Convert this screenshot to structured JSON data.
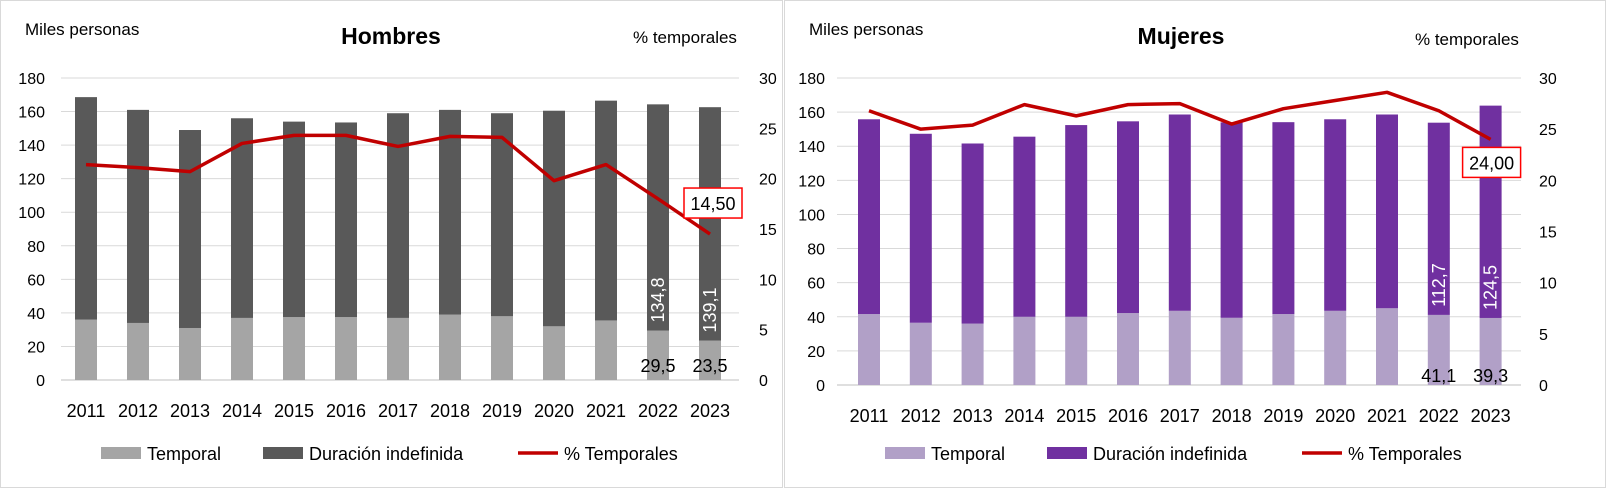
{
  "colors": {
    "line": "#c00000",
    "label_box": "#ff0000",
    "grid": "#d9d9d9"
  },
  "chart_data": [
    {
      "type": "bar",
      "stacked": true,
      "title": "Hombres",
      "ylabel": "Miles personas",
      "y2label": "% temporales",
      "ylim": [
        0,
        180
      ],
      "yticks": [
        0,
        20,
        40,
        60,
        80,
        100,
        120,
        140,
        160,
        180
      ],
      "y2lim": [
        0,
        30
      ],
      "y2ticks": [
        0,
        5,
        10,
        15,
        20,
        25,
        30
      ],
      "grid": true,
      "legend": "bottom",
      "categories": [
        "2011",
        "2012",
        "2013",
        "2014",
        "2015",
        "2016",
        "2017",
        "2018",
        "2019",
        "2020",
        "2021",
        "2022",
        "2023"
      ],
      "series": [
        {
          "name": "Temporal",
          "kind": "bar",
          "color": "#a5a5a5",
          "values": [
            36,
            34,
            31,
            37,
            37.5,
            37.5,
            37,
            39,
            38,
            32,
            35.5,
            29.5,
            23.5
          ],
          "labels": [
            "",
            "",
            "",
            "",
            "",
            "",
            "",
            "",
            "",
            "",
            "",
            "29,5",
            "23,5"
          ]
        },
        {
          "name": "Duración indefinida",
          "kind": "bar",
          "color": "#595959",
          "values": [
            132.6,
            127,
            118,
            119,
            116.5,
            116,
            122,
            122,
            121,
            128.5,
            131,
            134.8,
            139.1
          ],
          "labels": [
            "",
            "",
            "",
            "",
            "",
            "",
            "",
            "",
            "",
            "",
            "",
            "134,8",
            "139,1"
          ]
        },
        {
          "name": "% Temporales",
          "kind": "line",
          "axis": "y2",
          "color": "#c00000",
          "values": [
            21.4,
            21.1,
            20.7,
            23.5,
            24.3,
            24.3,
            23.2,
            24.2,
            24.1,
            19.8,
            21.4,
            18.0,
            14.5
          ],
          "last_label": "14,50"
        }
      ]
    },
    {
      "type": "bar",
      "stacked": true,
      "title": "Mujeres",
      "ylabel": "Miles personas",
      "y2label": "% temporales",
      "ylim": [
        0,
        180
      ],
      "yticks": [
        0,
        20,
        40,
        60,
        80,
        100,
        120,
        140,
        160,
        180
      ],
      "y2lim": [
        0,
        30
      ],
      "y2ticks": [
        0,
        5,
        10,
        15,
        20,
        25,
        30
      ],
      "grid": true,
      "legend": "bottom",
      "categories": [
        "2011",
        "2012",
        "2013",
        "2014",
        "2015",
        "2016",
        "2017",
        "2018",
        "2019",
        "2020",
        "2021",
        "2022",
        "2023"
      ],
      "series": [
        {
          "name": "Temporal",
          "kind": "bar",
          "color": "#b1a0c7",
          "values": [
            41.6,
            36.5,
            36,
            40,
            40,
            42.2,
            43.5,
            39.4,
            41.6,
            43.5,
            45,
            41.1,
            39.3
          ],
          "labels": [
            "",
            "",
            "",
            "",
            "",
            "",
            "",
            "",
            "",
            "",
            "",
            "41,1",
            "39,3"
          ]
        },
        {
          "name": "Duración indefinida",
          "kind": "bar",
          "color": "#7030a0",
          "values": [
            114.2,
            110.8,
            105.6,
            105.6,
            112.4,
            112.4,
            115.1,
            114.6,
            112.5,
            112.3,
            113.6,
            112.7,
            124.5
          ],
          "labels": [
            "",
            "",
            "",
            "",
            "",
            "",
            "",
            "",
            "",
            "",
            "",
            "112,7",
            "124,5"
          ]
        },
        {
          "name": "% Temporales",
          "kind": "line",
          "axis": "y2",
          "color": "#c00000",
          "values": [
            26.8,
            25.0,
            25.4,
            27.4,
            26.3,
            27.4,
            27.5,
            25.5,
            27.0,
            27.8,
            28.6,
            26.8,
            24.0
          ],
          "last_label": "24,00"
        }
      ]
    }
  ]
}
